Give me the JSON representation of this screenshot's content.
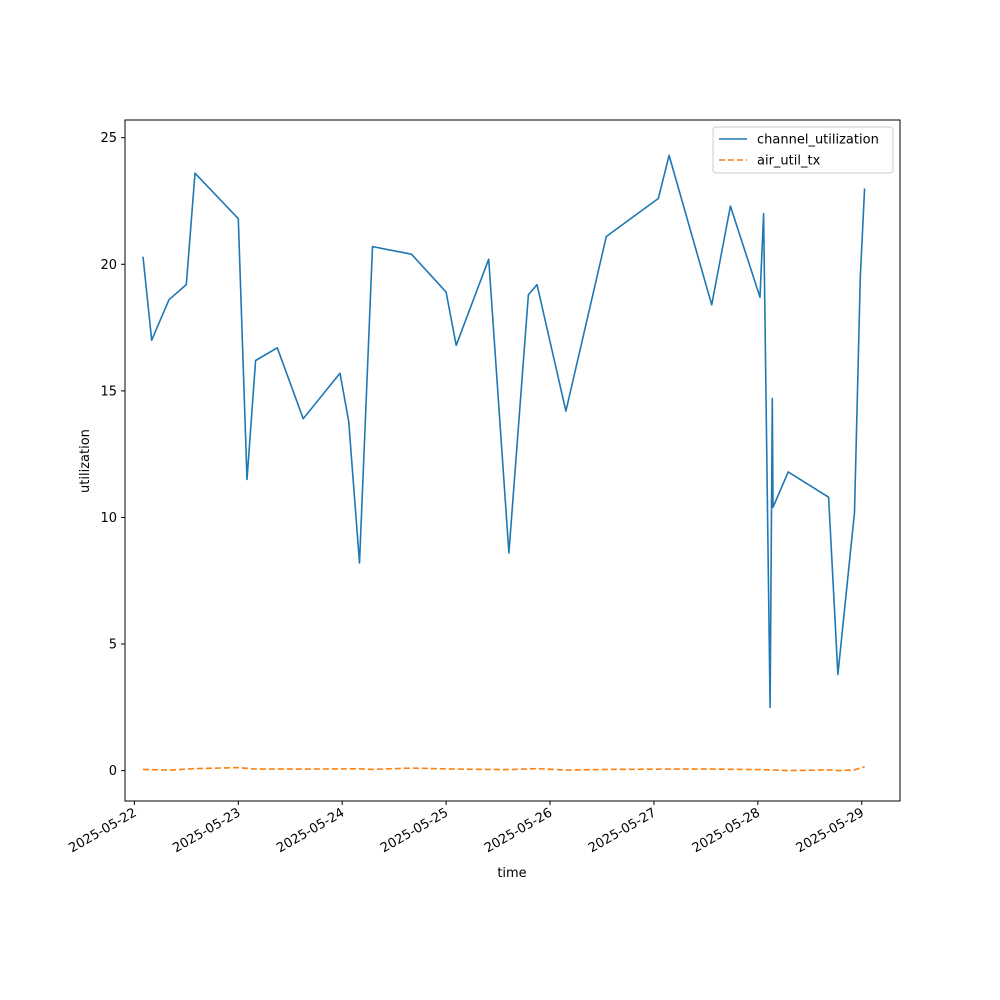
{
  "chart_data": {
    "type": "line",
    "xlabel": "time",
    "ylabel": "utilization",
    "ylim": [
      -1.2,
      25.7
    ],
    "xlim": [
      "2025-05-21T21:50:00",
      "2025-05-29T08:50:00"
    ],
    "y_ticks": [
      0,
      5,
      10,
      15,
      20,
      25
    ],
    "x_ticks": [
      "2025-05-22",
      "2025-05-23",
      "2025-05-24",
      "2025-05-25",
      "2025-05-26",
      "2025-05-27",
      "2025-05-28",
      "2025-05-29"
    ],
    "grid": false,
    "legend_position": "top-right",
    "series": [
      {
        "name": "channel_utilization",
        "color": "#1f77b4",
        "dash": "solid",
        "x": [
          "2025-05-22T02:00",
          "2025-05-22T04:00",
          "2025-05-22T08:00",
          "2025-05-22T12:00",
          "2025-05-22T14:00",
          "2025-05-23T00:00",
          "2025-05-23T02:00",
          "2025-05-23T04:00",
          "2025-05-23T09:00",
          "2025-05-23T15:00",
          "2025-05-23T23:30",
          "2025-05-24T01:30",
          "2025-05-24T04:00",
          "2025-05-24T07:00",
          "2025-05-24T16:00",
          "2025-05-25T00:00",
          "2025-05-25T02:20",
          "2025-05-25T09:50",
          "2025-05-25T14:30",
          "2025-05-25T19:00",
          "2025-05-25T21:00",
          "2025-05-26T03:40",
          "2025-05-26T13:00",
          "2025-05-27T01:00",
          "2025-05-27T03:30",
          "2025-05-27T13:20",
          "2025-05-27T17:40",
          "2025-05-28T00:30",
          "2025-05-28T01:20",
          "2025-05-28T02:50",
          "2025-05-28T03:20",
          "2025-05-28T03:30",
          "2025-05-28T07:00",
          "2025-05-28T16:20",
          "2025-05-28T18:30",
          "2025-05-28T22:20",
          "2025-05-28T23:40",
          "2025-05-29T00:40"
        ],
        "y": [
          20.3,
          17.0,
          18.6,
          19.2,
          23.6,
          21.8,
          11.5,
          16.2,
          16.7,
          13.9,
          15.7,
          13.8,
          8.2,
          20.7,
          20.4,
          18.9,
          16.8,
          20.2,
          8.6,
          18.8,
          19.2,
          14.2,
          21.1,
          22.6,
          24.3,
          18.4,
          22.3,
          18.7,
          22.0,
          2.5,
          14.7,
          10.4,
          11.8,
          10.8,
          3.8,
          10.2,
          19.5,
          23.0
        ]
      },
      {
        "name": "air_util_tx",
        "color": "#ff7f0e",
        "dash": "dashed",
        "x": [
          "2025-05-22T02:00",
          "2025-05-22T08:00",
          "2025-05-22T14:00",
          "2025-05-23T00:00",
          "2025-05-23T04:00",
          "2025-05-23T15:00",
          "2025-05-24T04:00",
          "2025-05-24T07:00",
          "2025-05-24T16:00",
          "2025-05-25T02:20",
          "2025-05-25T14:30",
          "2025-05-25T21:00",
          "2025-05-26T03:40",
          "2025-05-26T13:00",
          "2025-05-27T03:30",
          "2025-05-27T13:20",
          "2025-05-28T00:30",
          "2025-05-28T02:50",
          "2025-05-28T07:00",
          "2025-05-28T16:20",
          "2025-05-28T18:30",
          "2025-05-28T22:20",
          "2025-05-29T00:40"
        ],
        "y": [
          0.05,
          0.02,
          0.08,
          0.12,
          0.06,
          0.06,
          0.07,
          0.05,
          0.1,
          0.06,
          0.04,
          0.08,
          0.02,
          0.05,
          0.06,
          0.06,
          0.04,
          0.03,
          0.0,
          0.03,
          0.0,
          0.03,
          0.15
        ]
      }
    ]
  }
}
